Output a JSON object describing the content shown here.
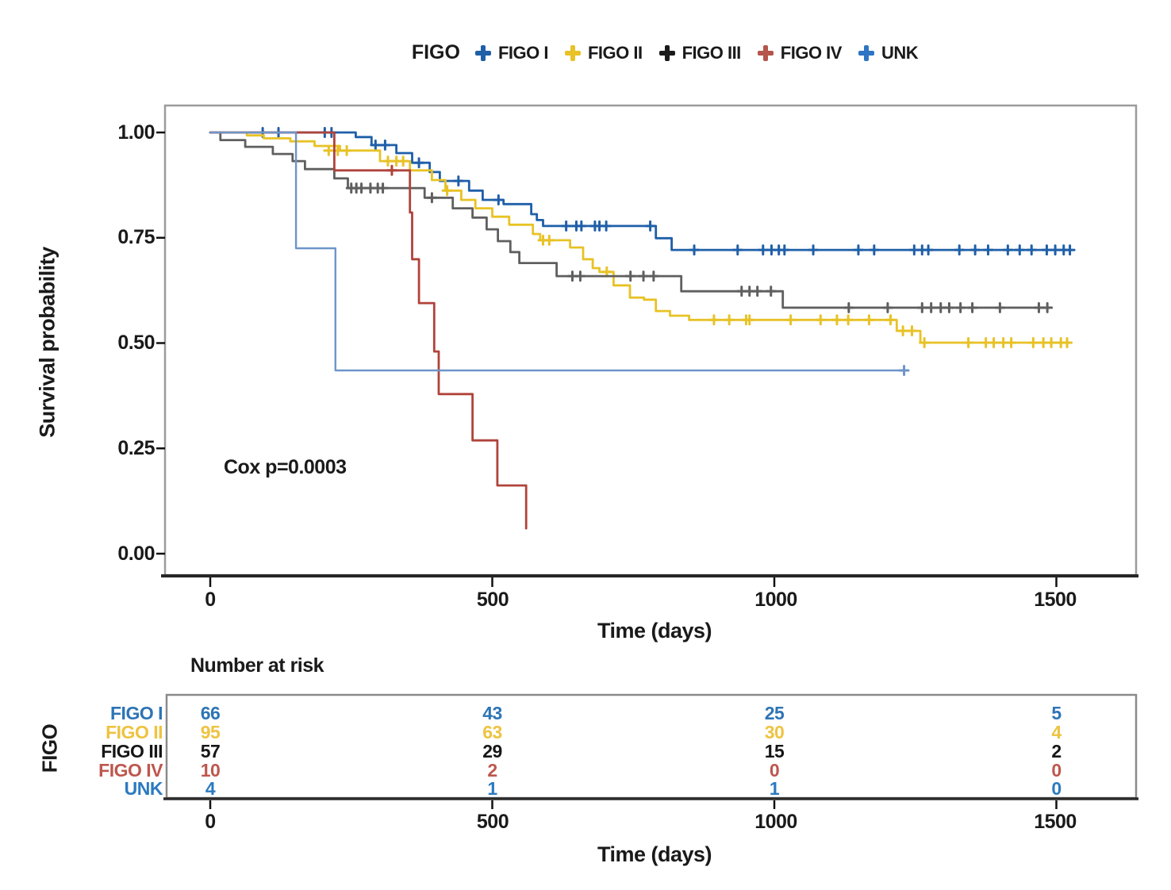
{
  "legend": {
    "title": "FIGO",
    "items": [
      {
        "label": "FIGO I",
        "color": "#1f5fa8"
      },
      {
        "label": "FIGO II",
        "color": "#e8c226"
      },
      {
        "label": "FIGO III",
        "color": "#1b1b1b"
      },
      {
        "label": "FIGO IV",
        "color": "#b5554b"
      },
      {
        "label": "UNK",
        "color": "#2e75c4"
      }
    ]
  },
  "y_axis": {
    "title": "Survival probability",
    "ticks": [
      "1.00",
      "0.75",
      "0.50",
      "0.25",
      "0.00"
    ]
  },
  "x_axis": {
    "title": "Time (days)",
    "ticks": [
      "0",
      "500",
      "1000",
      "1500"
    ]
  },
  "annotation": "Cox p=0.0003",
  "risk_table": {
    "title": "Number at risk",
    "group_label": "FIGO",
    "x_axis_title": "Time (days)",
    "x_ticks": [
      "0",
      "500",
      "1000",
      "1500"
    ],
    "rows": [
      {
        "label": "FIGO I",
        "color": "#2e74b5",
        "values": [
          "66",
          "43",
          "25",
          "5"
        ]
      },
      {
        "label": "FIGO II",
        "color": "#eec340",
        "values": [
          "95",
          "63",
          "30",
          "4"
        ]
      },
      {
        "label": "FIGO III",
        "color": "#161616",
        "values": [
          "57",
          "29",
          "15",
          "2"
        ]
      },
      {
        "label": "FIGO IV",
        "color": "#bd574e",
        "values": [
          "10",
          "2",
          "0",
          "0"
        ]
      },
      {
        "label": "UNK",
        "color": "#2b7ac1",
        "values": [
          "4",
          "1",
          "1",
          "0"
        ]
      }
    ]
  },
  "chart_data": {
    "type": "line",
    "subtype": "kaplan-meier-step",
    "title": "",
    "xlabel": "Time (days)",
    "ylabel": "Survival probability",
    "xlim": [
      0,
      1640
    ],
    "ylim": [
      0,
      1
    ],
    "x_ticks": [
      0,
      500,
      1000,
      1500
    ],
    "y_ticks": [
      1.0,
      0.75,
      0.5,
      0.25,
      0.0
    ],
    "grid": false,
    "legend_position": "top",
    "annotation": {
      "text": "Cox p=0.0003",
      "x": 100,
      "y": 0.2
    },
    "series": [
      {
        "name": "FIGO I",
        "color": "#1f5fa8",
        "width": 2.8,
        "steps": [
          [
            0,
            1.0
          ],
          [
            258,
            0.989
          ],
          [
            286,
            0.97
          ],
          [
            330,
            0.951
          ],
          [
            358,
            0.928
          ],
          [
            389,
            0.906
          ],
          [
            407,
            0.885
          ],
          [
            459,
            0.862
          ],
          [
            483,
            0.84
          ],
          [
            520,
            0.83
          ],
          [
            569,
            0.806
          ],
          [
            579,
            0.792
          ],
          [
            590,
            0.778
          ],
          [
            790,
            0.749
          ],
          [
            818,
            0.721
          ],
          [
            1525,
            0.721
          ]
        ],
        "censors": [
          [
            93,
            1.0
          ],
          [
            121,
            1.0
          ],
          [
            203,
            1.0
          ],
          [
            215,
            1.0
          ],
          [
            293,
            0.97
          ],
          [
            310,
            0.97
          ],
          [
            370,
            0.928
          ],
          [
            440,
            0.885
          ],
          [
            511,
            0.84
          ],
          [
            631,
            0.778
          ],
          [
            649,
            0.778
          ],
          [
            658,
            0.778
          ],
          [
            682,
            0.778
          ],
          [
            690,
            0.778
          ],
          [
            702,
            0.778
          ],
          [
            780,
            0.778
          ],
          [
            858,
            0.721
          ],
          [
            935,
            0.721
          ],
          [
            980,
            0.721
          ],
          [
            995,
            0.721
          ],
          [
            1008,
            0.721
          ],
          [
            1018,
            0.721
          ],
          [
            1069,
            0.721
          ],
          [
            1149,
            0.721
          ],
          [
            1177,
            0.721
          ],
          [
            1248,
            0.721
          ],
          [
            1262,
            0.721
          ],
          [
            1273,
            0.721
          ],
          [
            1328,
            0.721
          ],
          [
            1356,
            0.721
          ],
          [
            1379,
            0.721
          ],
          [
            1414,
            0.721
          ],
          [
            1435,
            0.721
          ],
          [
            1456,
            0.721
          ],
          [
            1483,
            0.721
          ],
          [
            1498,
            0.721
          ],
          [
            1513,
            0.721
          ],
          [
            1524,
            0.721
          ]
        ]
      },
      {
        "name": "FIGO II",
        "color": "#e8c226",
        "width": 2.8,
        "steps": [
          [
            0,
            1.0
          ],
          [
            65,
            0.993
          ],
          [
            95,
            0.986
          ],
          [
            142,
            0.979
          ],
          [
            185,
            0.968
          ],
          [
            230,
            0.957
          ],
          [
            301,
            0.932
          ],
          [
            354,
            0.91
          ],
          [
            393,
            0.887
          ],
          [
            417,
            0.862
          ],
          [
            445,
            0.84
          ],
          [
            470,
            0.82
          ],
          [
            500,
            0.8
          ],
          [
            530,
            0.781
          ],
          [
            572,
            0.759
          ],
          [
            585,
            0.744
          ],
          [
            638,
            0.727
          ],
          [
            661,
            0.699
          ],
          [
            678,
            0.678
          ],
          [
            690,
            0.669
          ],
          [
            715,
            0.637
          ],
          [
            744,
            0.608
          ],
          [
            769,
            0.603
          ],
          [
            790,
            0.576
          ],
          [
            815,
            0.565
          ],
          [
            849,
            0.555
          ],
          [
            1217,
            0.529
          ],
          [
            1259,
            0.501
          ],
          [
            1520,
            0.501
          ]
        ],
        "censors": [
          [
            210,
            0.957
          ],
          [
            226,
            0.957
          ],
          [
            242,
            0.957
          ],
          [
            315,
            0.932
          ],
          [
            330,
            0.932
          ],
          [
            342,
            0.932
          ],
          [
            420,
            0.862
          ],
          [
            590,
            0.744
          ],
          [
            601,
            0.744
          ],
          [
            703,
            0.669
          ],
          [
            893,
            0.555
          ],
          [
            920,
            0.555
          ],
          [
            950,
            0.555
          ],
          [
            956,
            0.555
          ],
          [
            1029,
            0.555
          ],
          [
            1082,
            0.555
          ],
          [
            1111,
            0.555
          ],
          [
            1131,
            0.555
          ],
          [
            1168,
            0.555
          ],
          [
            1206,
            0.555
          ],
          [
            1228,
            0.529
          ],
          [
            1244,
            0.529
          ],
          [
            1266,
            0.501
          ],
          [
            1344,
            0.501
          ],
          [
            1375,
            0.501
          ],
          [
            1389,
            0.501
          ],
          [
            1406,
            0.501
          ],
          [
            1420,
            0.501
          ],
          [
            1459,
            0.501
          ],
          [
            1477,
            0.501
          ],
          [
            1491,
            0.501
          ],
          [
            1508,
            0.501
          ],
          [
            1519,
            0.501
          ]
        ]
      },
      {
        "name": "FIGO III",
        "color": "#5f5f5f",
        "width": 2.8,
        "steps": [
          [
            0,
            1.0
          ],
          [
            18,
            0.982
          ],
          [
            62,
            0.966
          ],
          [
            111,
            0.949
          ],
          [
            146,
            0.932
          ],
          [
            168,
            0.913
          ],
          [
            220,
            0.891
          ],
          [
            244,
            0.868
          ],
          [
            380,
            0.845
          ],
          [
            430,
            0.82
          ],
          [
            465,
            0.798
          ],
          [
            490,
            0.77
          ],
          [
            510,
            0.742
          ],
          [
            532,
            0.716
          ],
          [
            548,
            0.69
          ],
          [
            614,
            0.659
          ],
          [
            835,
            0.623
          ],
          [
            1015,
            0.584
          ],
          [
            1487,
            0.584
          ]
        ],
        "censors": [
          [
            250,
            0.868
          ],
          [
            259,
            0.868
          ],
          [
            268,
            0.868
          ],
          [
            284,
            0.868
          ],
          [
            297,
            0.868
          ],
          [
            306,
            0.868
          ],
          [
            393,
            0.845
          ],
          [
            642,
            0.659
          ],
          [
            656,
            0.659
          ],
          [
            745,
            0.659
          ],
          [
            768,
            0.659
          ],
          [
            786,
            0.659
          ],
          [
            942,
            0.623
          ],
          [
            956,
            0.623
          ],
          [
            970,
            0.623
          ],
          [
            994,
            0.623
          ],
          [
            1132,
            0.584
          ],
          [
            1201,
            0.584
          ],
          [
            1262,
            0.584
          ],
          [
            1278,
            0.584
          ],
          [
            1295,
            0.584
          ],
          [
            1310,
            0.584
          ],
          [
            1330,
            0.584
          ],
          [
            1351,
            0.584
          ],
          [
            1400,
            0.584
          ],
          [
            1469,
            0.584
          ],
          [
            1484,
            0.584
          ]
        ]
      },
      {
        "name": "FIGO IV",
        "color": "#b0433b",
        "width": 2.8,
        "steps": [
          [
            0,
            1.0
          ],
          [
            220,
            0.91
          ],
          [
            354,
            0.81
          ],
          [
            358,
            0.699
          ],
          [
            370,
            0.595
          ],
          [
            397,
            0.48
          ],
          [
            405,
            0.379
          ],
          [
            465,
            0.269
          ],
          [
            509,
            0.162
          ],
          [
            560,
            0.06
          ]
        ],
        "censors": [
          [
            322,
            0.91
          ]
        ]
      },
      {
        "name": "UNK",
        "color": "#6d95c9",
        "width": 2.4,
        "steps": [
          [
            0,
            1.0
          ],
          [
            152,
            0.725
          ],
          [
            222,
            0.435
          ],
          [
            1230,
            0.435
          ]
        ],
        "censors": [
          [
            1230,
            0.435
          ]
        ]
      }
    ]
  }
}
